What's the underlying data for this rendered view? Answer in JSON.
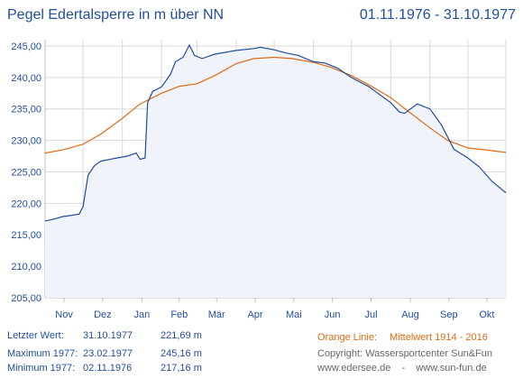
{
  "header": {
    "title": "Pegel Edertalsperre in m über NN",
    "date_range": "01.11.1976 - 31.10.1977"
  },
  "colors": {
    "measured_line": "#1f4e9a",
    "average_line": "#e06b14",
    "area_fill": "#f1f3fb",
    "grid": "#d9d9d9",
    "text": "#1f4e9a"
  },
  "chart_data": {
    "type": "line",
    "title": "Pegel Edertalsperre in m über NN",
    "ylabel": "",
    "xlabel": "",
    "ylim": [
      205,
      246
    ],
    "yticks": [
      "205,00",
      "210,00",
      "215,00",
      "220,00",
      "225,00",
      "230,00",
      "235,00",
      "240,00",
      "245,00"
    ],
    "ytick_values": [
      205,
      210,
      215,
      220,
      225,
      230,
      235,
      240,
      245
    ],
    "months": [
      "Nov",
      "Dez",
      "Jan",
      "Feb",
      "Mär",
      "Apr",
      "Mai",
      "Jun",
      "Jul",
      "Aug",
      "Sep",
      "Okt"
    ],
    "grid": true,
    "series": [
      {
        "points": [
          [
            "1976-11-01",
            217.2
          ],
          [
            "1976-11-08",
            217.5
          ],
          [
            "1976-11-15",
            217.9
          ],
          [
            "1976-11-22",
            218.1
          ],
          [
            "1976-11-28",
            218.3
          ],
          [
            "1976-12-01",
            219.5
          ],
          [
            "1976-12-05",
            224.5
          ],
          [
            "1976-12-10",
            226.0
          ],
          [
            "1976-12-15",
            226.7
          ],
          [
            "1976-12-25",
            227.1
          ],
          [
            "1977-01-05",
            227.5
          ],
          [
            "1977-01-12",
            228.0
          ],
          [
            "1977-01-15",
            227.0
          ],
          [
            "1977-01-19",
            227.2
          ],
          [
            "1977-01-21",
            236.0
          ],
          [
            "1977-01-25",
            237.8
          ],
          [
            "1977-02-01",
            238.5
          ],
          [
            "1977-02-08",
            240.5
          ],
          [
            "1977-02-12",
            242.5
          ],
          [
            "1977-02-18",
            243.2
          ],
          [
            "1977-02-23",
            245.16
          ],
          [
            "1977-02-27",
            243.5
          ],
          [
            "1977-03-05",
            243.0
          ],
          [
            "1977-03-15",
            243.7
          ],
          [
            "1977-04-01",
            244.3
          ],
          [
            "1977-04-15",
            244.6
          ],
          [
            "1977-04-20",
            244.8
          ],
          [
            "1977-05-01",
            244.4
          ],
          [
            "1977-05-10",
            243.9
          ],
          [
            "1977-05-20",
            243.5
          ],
          [
            "1977-06-01",
            242.5
          ],
          [
            "1977-06-10",
            242.3
          ],
          [
            "1977-06-20",
            241.5
          ],
          [
            "1977-07-01",
            240.0
          ],
          [
            "1977-07-15",
            238.5
          ],
          [
            "1977-08-01",
            236.0
          ],
          [
            "1977-08-08",
            234.5
          ],
          [
            "1977-08-12",
            234.3
          ],
          [
            "1977-08-22",
            235.8
          ],
          [
            "1977-09-01",
            235.0
          ],
          [
            "1977-09-10",
            232.5
          ],
          [
            "1977-09-20",
            228.6
          ],
          [
            "1977-10-01",
            227.2
          ],
          [
            "1977-10-10",
            225.8
          ],
          [
            "1977-10-20",
            223.5
          ],
          [
            "1977-10-31",
            221.69
          ]
        ]
      },
      {
        "points": [
          [
            "1976-11-01",
            228.0
          ],
          [
            "1976-11-15",
            228.5
          ],
          [
            "1976-12-01",
            229.4
          ],
          [
            "1976-12-15",
            231.0
          ],
          [
            "1977-01-01",
            233.5
          ],
          [
            "1977-01-15",
            235.8
          ],
          [
            "1977-02-01",
            237.5
          ],
          [
            "1977-02-15",
            238.6
          ],
          [
            "1977-03-01",
            239.0
          ],
          [
            "1977-03-15",
            240.3
          ],
          [
            "1977-04-01",
            242.2
          ],
          [
            "1977-04-15",
            243.0
          ],
          [
            "1977-05-01",
            243.2
          ],
          [
            "1977-05-15",
            243.0
          ],
          [
            "1977-06-01",
            242.4
          ],
          [
            "1977-06-15",
            241.6
          ],
          [
            "1977-07-01",
            240.3
          ],
          [
            "1977-07-15",
            238.8
          ],
          [
            "1977-08-01",
            236.8
          ],
          [
            "1977-08-15",
            234.6
          ],
          [
            "1977-09-01",
            232.0
          ],
          [
            "1977-09-15",
            230.0
          ],
          [
            "1977-10-01",
            228.8
          ],
          [
            "1977-10-15",
            228.5
          ],
          [
            "1977-10-31",
            228.1
          ]
        ]
      }
    ]
  },
  "stats": {
    "last": {
      "label": "Letzter Wert:",
      "date": "31.10.1977",
      "value": "221,69 m"
    },
    "max": {
      "label": "Maximum 1977:",
      "date": "23.02.1977",
      "value": "245,16 m"
    },
    "min": {
      "label": "Minimum  1977:",
      "date": "02.11.1976",
      "value": "217,16 m"
    }
  },
  "legend": {
    "orange_label": "Orange Linie:",
    "orange_text": "Mittelwert   1914 - 2016"
  },
  "credits": {
    "copyright": "Copyright: Wassersportcenter Sun&Fun",
    "sites": "www.edersee.de    -    www.sun-fun.de"
  }
}
